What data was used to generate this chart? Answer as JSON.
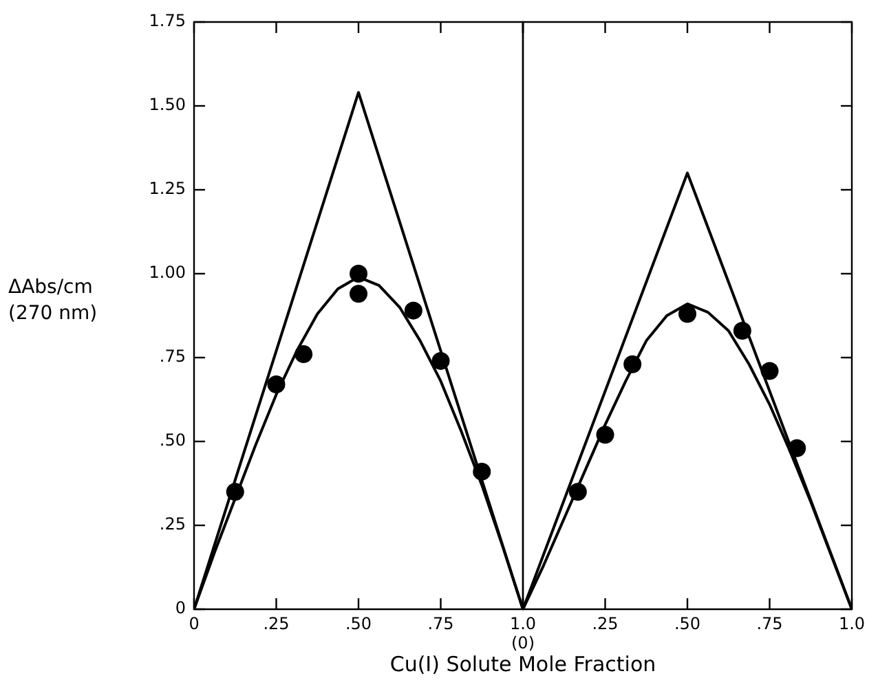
{
  "chart_data": [
    {
      "type": "line",
      "xlabel": "Cu(I) Solute Mole Fraction",
      "ylabel": "ΔAbs/cm\n(270 nm)",
      "xlim": [
        0,
        1
      ],
      "xticks": [
        0,
        {
          "value": 0.25,
          "label": ".25"
        },
        {
          "value": 0.5,
          "label": ".50"
        },
        {
          "value": 0.75,
          "label": ".75"
        },
        {
          "value": 1,
          "label": "1.0\n(0)"
        }
      ],
      "ylim": [
        0,
        1.75
      ],
      "yticks": [
        0,
        {
          "value": 0.25,
          "label": ".25"
        },
        {
          "value": 0.5,
          "label": ".50"
        },
        {
          "value": 0.75,
          "label": ".75"
        },
        {
          "value": 1,
          "label": "1.00"
        },
        {
          "value": 1.25,
          "label": "1.25"
        },
        {
          "value": 1.5,
          "label": "1.50"
        },
        {
          "value": 1.75,
          "label": "1.75"
        }
      ],
      "grid": false,
      "legend": false,
      "series": [
        {
          "color": "#000000",
          "marker": "none",
          "x": [
            0,
            0.5,
            1
          ],
          "values": [
            0,
            1.54,
            0
          ]
        },
        {
          "color": "#000000",
          "marker": "none",
          "x": [
            0,
            0.0625,
            0.125,
            0.1875,
            0.25,
            0.3125,
            0.375,
            0.4375,
            0.5,
            0.5625,
            0.625,
            0.6875,
            0.75,
            0.8125,
            0.875,
            0.9375,
            1
          ],
          "values": [
            0,
            0.17,
            0.33,
            0.49,
            0.64,
            0.77,
            0.88,
            0.955,
            0.99,
            0.965,
            0.9,
            0.8,
            0.68,
            0.53,
            0.37,
            0.19,
            0
          ]
        },
        {
          "type": "scatter",
          "color": "#000000",
          "marker": "circle",
          "x": [
            0.125,
            0.25,
            0.333,
            0.5,
            0.5,
            0.667,
            0.75,
            0.875
          ],
          "values": [
            0.35,
            0.67,
            0.76,
            1.0,
            0.94,
            0.89,
            0.74,
            0.41
          ]
        }
      ]
    },
    {
      "type": "line",
      "tick_labels": "x",
      "xlim": [
        0,
        1
      ],
      "xticks": [
        {
          "value": 0,
          "label": null
        },
        {
          "value": 0.25,
          "label": ".25"
        },
        {
          "value": 0.5,
          "label": ".50"
        },
        {
          "value": 0.75,
          "label": ".75"
        },
        {
          "value": 1,
          "label": "1.0"
        }
      ],
      "ylim": [
        0,
        1.75
      ],
      "yticks": [
        0,
        0.25,
        0.5,
        0.75,
        1,
        1.25,
        1.5,
        1.75
      ],
      "grid": false,
      "legend": false,
      "series": [
        {
          "color": "#000000",
          "marker": "none",
          "x": [
            0,
            0.5,
            1
          ],
          "values": [
            0,
            1.3,
            0
          ]
        },
        {
          "color": "#000000",
          "marker": "none",
          "x": [
            0,
            0.0625,
            0.125,
            0.1875,
            0.25,
            0.3125,
            0.375,
            0.4375,
            0.5,
            0.5625,
            0.625,
            0.6875,
            0.75,
            0.8125,
            0.875,
            0.9375,
            1
          ],
          "values": [
            0,
            0.13,
            0.27,
            0.41,
            0.55,
            0.68,
            0.8,
            0.875,
            0.91,
            0.885,
            0.83,
            0.73,
            0.61,
            0.47,
            0.32,
            0.16,
            0
          ]
        },
        {
          "type": "scatter",
          "color": "#000000",
          "marker": "circle",
          "x": [
            0.167,
            0.25,
            0.333,
            0.5,
            0.667,
            0.75,
            0.833
          ],
          "values": [
            0.35,
            0.52,
            0.73,
            0.88,
            0.83,
            0.71,
            0.48
          ]
        }
      ]
    }
  ]
}
